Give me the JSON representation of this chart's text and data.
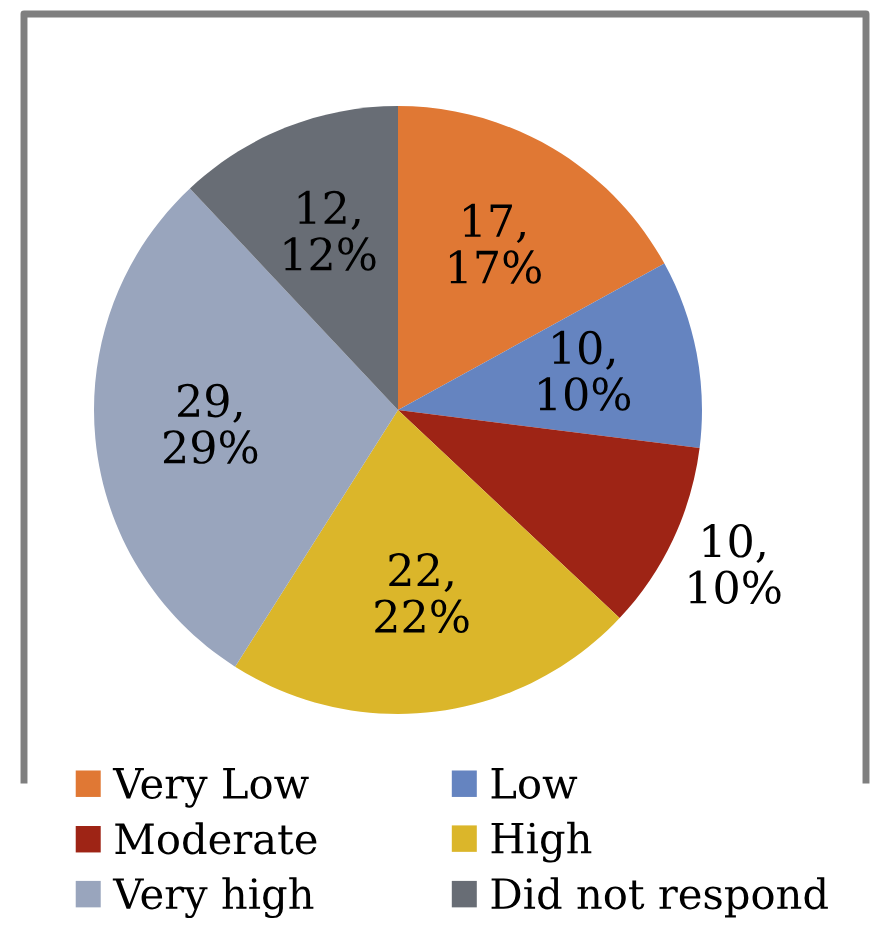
{
  "chart_data": {
    "type": "pie",
    "categories": [
      "Very Low",
      "Low",
      "Moderate",
      "High",
      "Very high",
      "Did not respond"
    ],
    "values": [
      17,
      10,
      10,
      22,
      29,
      12
    ],
    "colors": [
      "#e07834",
      "#6584c0",
      "#9e2415",
      "#dbb62a",
      "#99a5bd",
      "#686d75"
    ],
    "value_labels": [
      "17,\n17%",
      "10,\n10%",
      "10,\n10%",
      "22,\n22%",
      "29,\n29%",
      "12,\n12%"
    ],
    "legend": "bottom"
  }
}
